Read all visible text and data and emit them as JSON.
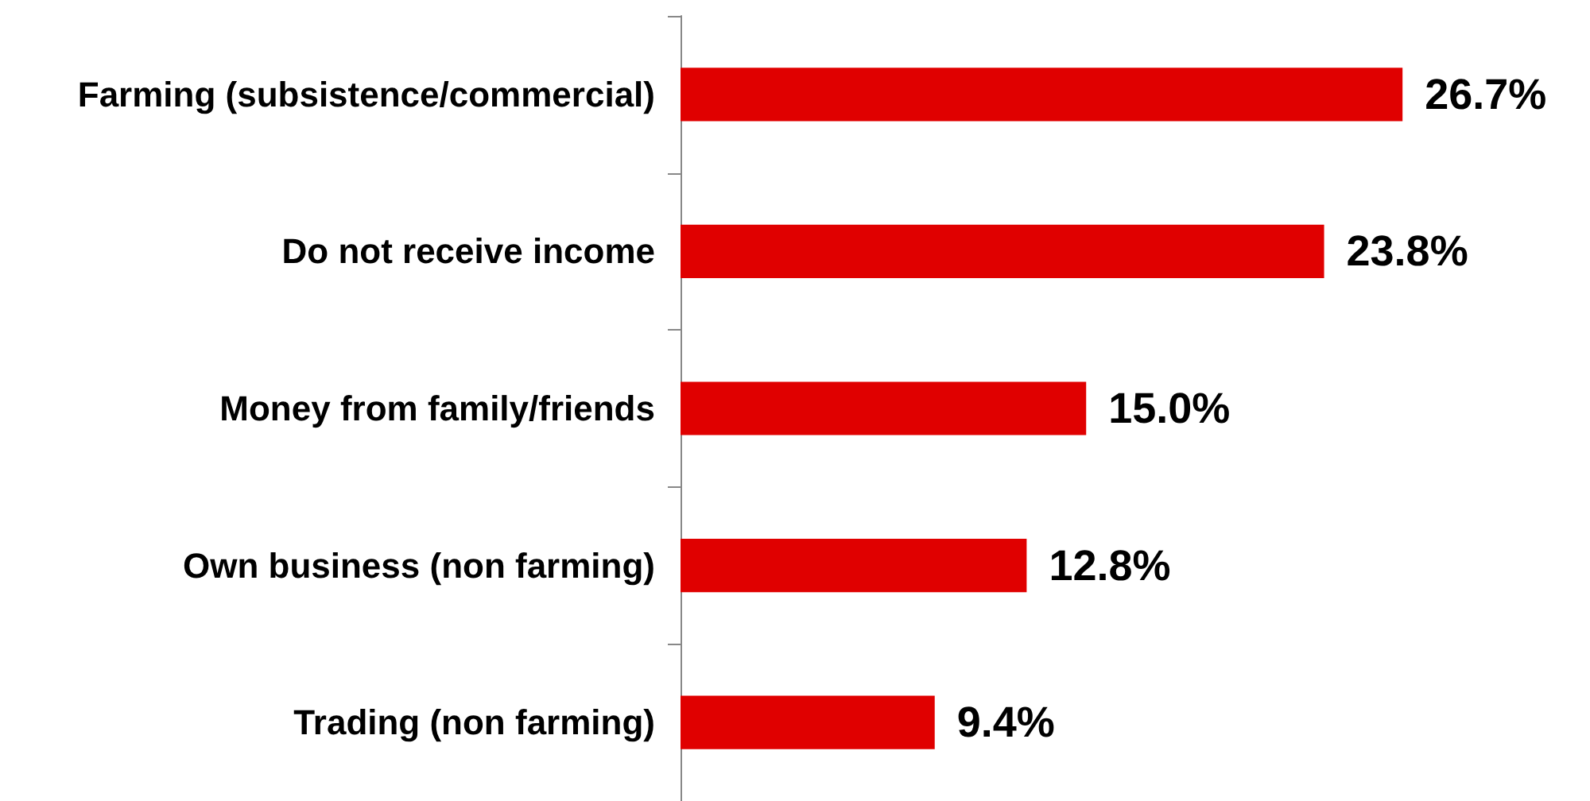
{
  "chart_data": {
    "type": "bar",
    "orientation": "horizontal",
    "categories": [
      "Farming (subsistence/commercial)",
      "Do not receive income",
      "Money from family/friends",
      "Own business (non farming)",
      "Trading (non farming)"
    ],
    "values": [
      26.7,
      23.8,
      15.0,
      12.8,
      9.4
    ],
    "color": "#e00000",
    "data_labels": true,
    "value_labels": [
      "26.7%",
      "23.8%",
      "15.0%",
      "12.8%",
      "9.4%"
    ]
  }
}
